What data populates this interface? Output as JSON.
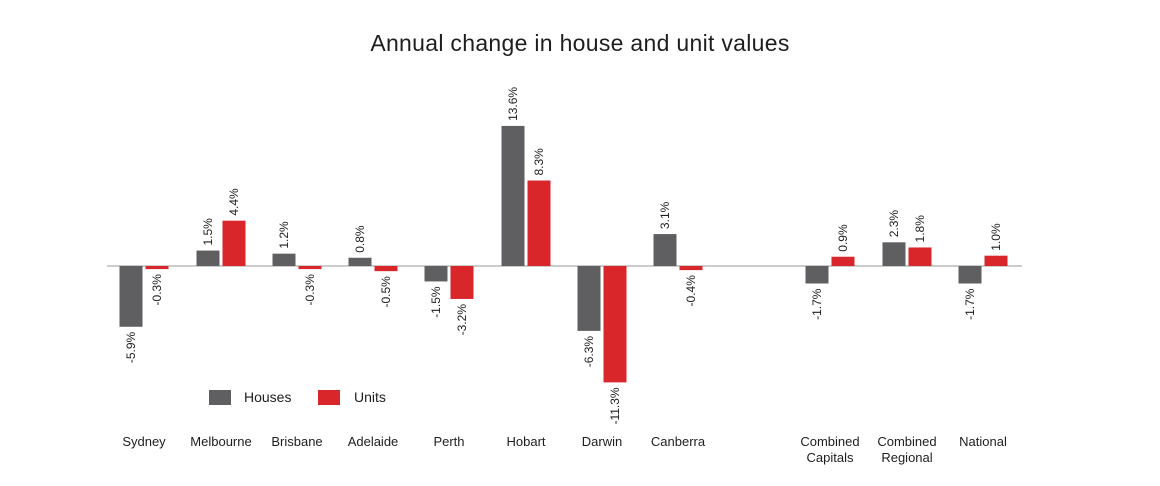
{
  "chart_data": {
    "type": "bar",
    "title": "Annual change in house and unit values",
    "categories": [
      [
        "Sydney"
      ],
      [
        "Melbourne"
      ],
      [
        "Brisbane"
      ],
      [
        "Adelaide"
      ],
      [
        "Perth"
      ],
      [
        "Hobart"
      ],
      [
        "Darwin"
      ],
      [
        "Canberra"
      ],
      [
        "Combined",
        "Capitals"
      ],
      [
        "Combined",
        "Regional"
      ],
      [
        "National"
      ]
    ],
    "series": [
      {
        "name": "Houses",
        "color": "#5f5f61",
        "values": [
          -5.9,
          1.5,
          1.2,
          0.8,
          -1.5,
          13.6,
          -6.3,
          3.1,
          -1.7,
          2.3,
          -1.7
        ],
        "labels": [
          "-5.9%",
          "1.5%",
          "1.2%",
          "0.8%",
          "-1.5%",
          "13.6%",
          "-6.3%",
          "3.1%",
          "-1.7%",
          "2.3%",
          "-1.7%"
        ]
      },
      {
        "name": "Units",
        "color": "#d9262b",
        "values": [
          -0.3,
          4.4,
          -0.3,
          -0.5,
          -3.2,
          8.3,
          -11.3,
          -0.4,
          0.9,
          1.8,
          1.0
        ],
        "labels": [
          "-0.3%",
          "4.4%",
          "-0.3%",
          "-0.5%",
          "-3.2%",
          "8.3%",
          "-11.3%",
          "-0.4%",
          "0.9%",
          "1.8%",
          "1.0%"
        ]
      }
    ],
    "legend_position": "bottom-left",
    "grid": false,
    "xlabel": "",
    "ylabel": "",
    "axis_color": "#9a9a9a"
  }
}
